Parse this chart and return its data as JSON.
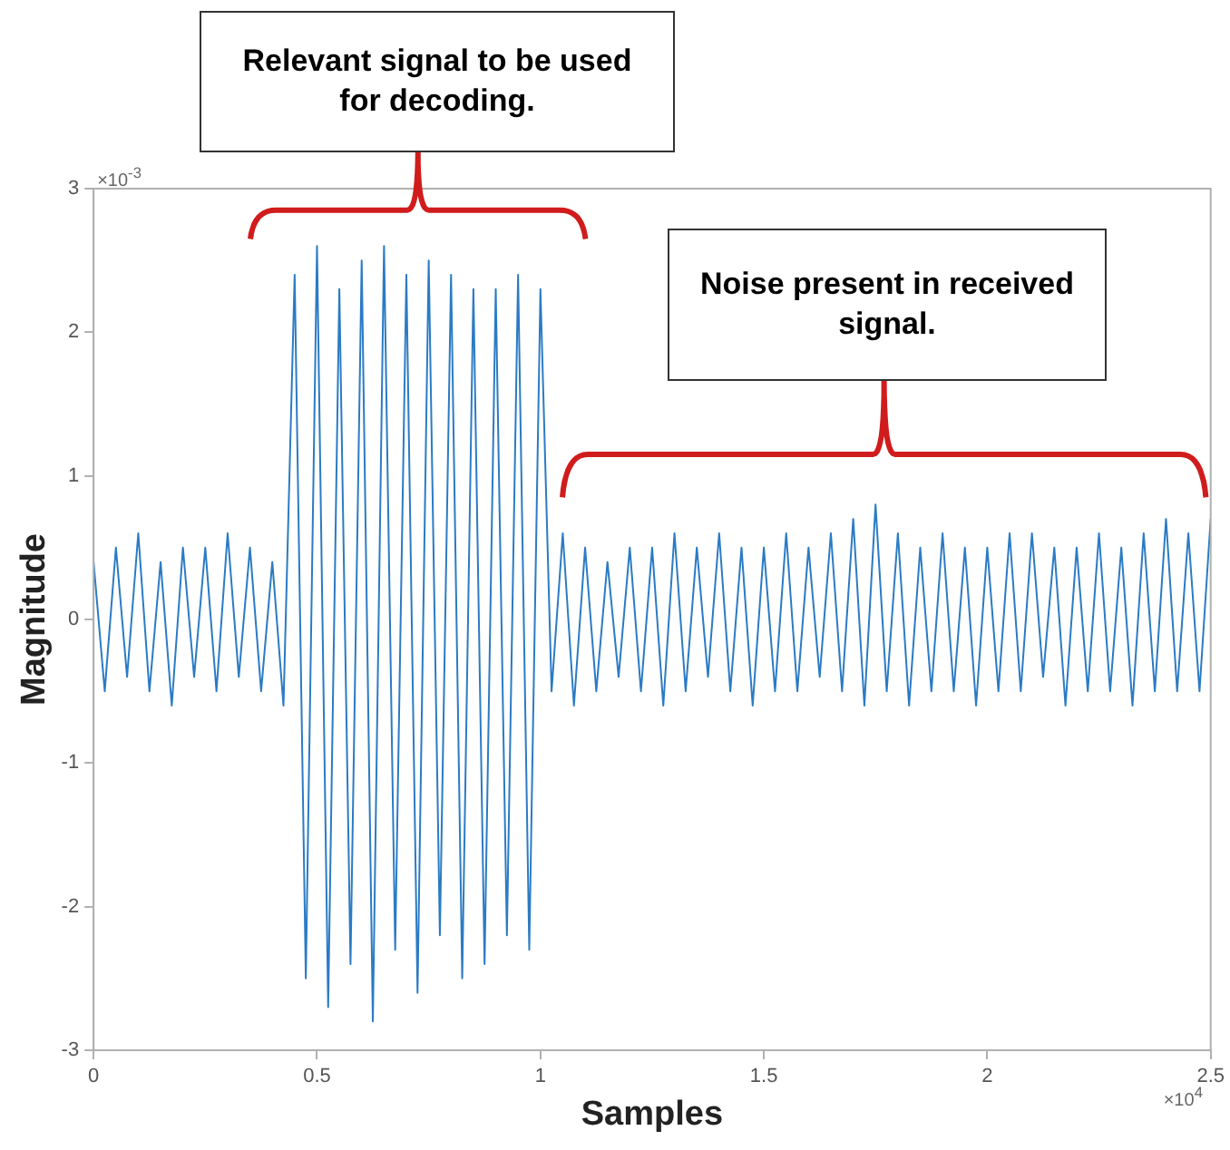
{
  "chart_data": {
    "type": "line",
    "xlabel": "Samples",
    "ylabel": "Magnitude",
    "annotations": [
      "Relevant signal to be used for decoding.",
      "Noise present in received signal.",
      "×10$^{-3}$",
      "×10$^{4}$"
    ],
    "xlim": [
      0,
      2.5
    ],
    "xticks": [
      0,
      0.5,
      1,
      1.5,
      2,
      2.5
    ],
    "ylim": [
      -3,
      3
    ],
    "yticks": [
      -3,
      -2,
      -1,
      0,
      1,
      2,
      3
    ],
    "grid": false,
    "legend": false,
    "marker": "none",
    "line_style": "solid",
    "series": [
      {
        "color": "#2b7bc4",
        "x": [
          0,
          0.025,
          0.05,
          0.075,
          0.1,
          0.125,
          0.15,
          0.175,
          0.2,
          0.225,
          0.25,
          0.275,
          0.3,
          0.325,
          0.35,
          0.375,
          0.4,
          0.425,
          0.45,
          0.475,
          0.5,
          0.525,
          0.55,
          0.575,
          0.6,
          0.625,
          0.65,
          0.675,
          0.7,
          0.725,
          0.75,
          0.775,
          0.8,
          0.825,
          0.85,
          0.875,
          0.9,
          0.925,
          0.95,
          0.975,
          1.0,
          1.025,
          1.05,
          1.075,
          1.1,
          1.125,
          1.15,
          1.175,
          1.2,
          1.225,
          1.25,
          1.275,
          1.3,
          1.325,
          1.35,
          1.375,
          1.4,
          1.425,
          1.45,
          1.475,
          1.5,
          1.525,
          1.55,
          1.575,
          1.6,
          1.625,
          1.65,
          1.675,
          1.7,
          1.725,
          1.75,
          1.775,
          1.8,
          1.825,
          1.85,
          1.875,
          1.9,
          1.925,
          1.95,
          1.975,
          2.0,
          2.025,
          2.05,
          2.075,
          2.1,
          2.125,
          2.15,
          2.175,
          2.2,
          2.225,
          2.25,
          2.275,
          2.3,
          2.325,
          2.35,
          2.375,
          2.4,
          2.425,
          2.45,
          2.475,
          2.5
        ],
        "values": [
          0.4,
          -0.5,
          0.5,
          -0.4,
          0.6,
          -0.5,
          0.4,
          -0.6,
          0.5,
          -0.4,
          0.5,
          -0.5,
          0.6,
          -0.4,
          0.5,
          -0.5,
          0.4,
          -0.6,
          2.4,
          -2.5,
          2.6,
          -2.7,
          2.3,
          -2.4,
          2.5,
          -2.8,
          2.6,
          -2.3,
          2.4,
          -2.6,
          2.5,
          -2.2,
          2.4,
          -2.5,
          2.3,
          -2.4,
          2.3,
          -2.2,
          2.4,
          -2.3,
          2.3,
          -0.5,
          0.6,
          -0.6,
          0.5,
          -0.5,
          0.4,
          -0.4,
          0.5,
          -0.5,
          0.5,
          -0.6,
          0.6,
          -0.5,
          0.5,
          -0.4,
          0.6,
          -0.5,
          0.5,
          -0.6,
          0.5,
          -0.5,
          0.6,
          -0.5,
          0.5,
          -0.4,
          0.6,
          -0.5,
          0.7,
          -0.6,
          0.8,
          -0.5,
          0.6,
          -0.6,
          0.5,
          -0.5,
          0.6,
          -0.5,
          0.5,
          -0.6,
          0.5,
          -0.5,
          0.6,
          -0.5,
          0.6,
          -0.4,
          0.5,
          -0.6,
          0.5,
          -0.5,
          0.6,
          -0.5,
          0.5,
          -0.6,
          0.6,
          -0.5,
          0.7,
          -0.5,
          0.6,
          -0.5,
          0.7
        ]
      }
    ]
  }
}
